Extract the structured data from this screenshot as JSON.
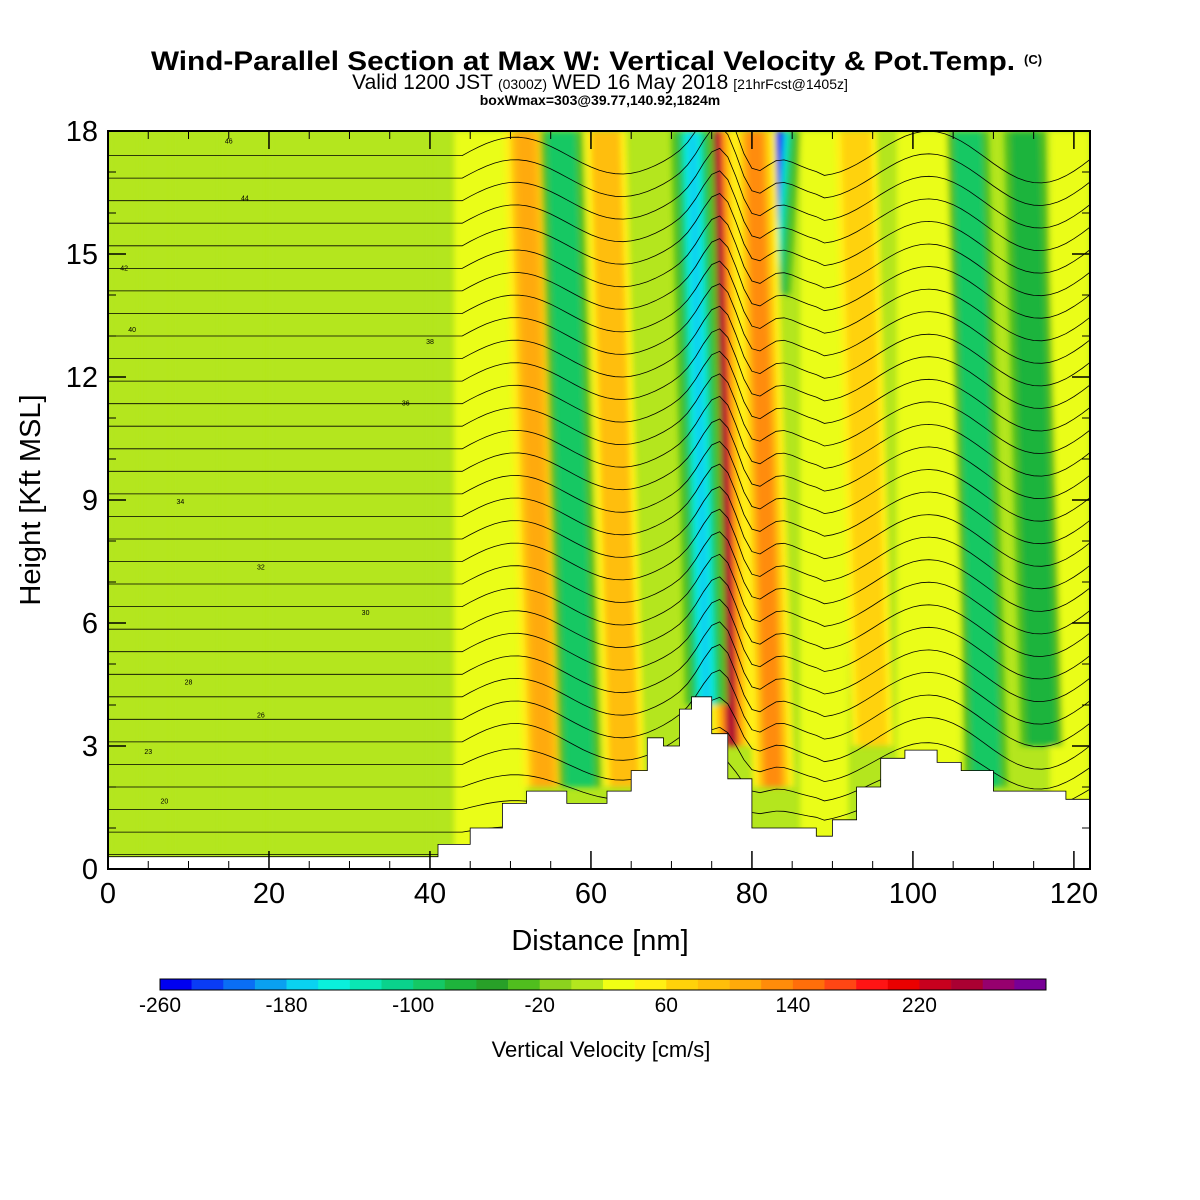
{
  "title": {
    "main": "Wind-Parallel Section at Max W: Vertical Velocity & Pot.Temp.",
    "copyright": "(C)",
    "line2_a": "Valid 1200 JST",
    "line2_b": "(0300Z)",
    "line2_c": "WED 16 May 2018",
    "line2_d": "[21hrFcst@1405z]",
    "line3": "boxWmax=303@39.77,140.92,1824m"
  },
  "chart_data": {
    "type": "heatmap",
    "xlabel": "Distance [nm]",
    "ylabel": "Height [Kft MSL]",
    "xlim": [
      0,
      122
    ],
    "ylim": [
      0,
      18
    ],
    "x_ticks": [
      "0",
      "20",
      "40",
      "60",
      "80",
      "100",
      "120"
    ],
    "y_ticks": [
      "0",
      "3",
      "6",
      "9",
      "12",
      "15",
      "18"
    ],
    "colorbar": {
      "title": "Vertical Velocity [cm/s]",
      "range": [
        -260,
        300
      ],
      "step": 20,
      "tick_labels": [
        "-260",
        "-180",
        "-100",
        "-20",
        "60",
        "140",
        "220"
      ],
      "colors": [
        "#0000f0",
        "#0a3cf5",
        "#0a6ef5",
        "#0aa0f0",
        "#0ad2f0",
        "#0af0dc",
        "#0ae6b4",
        "#0ad28c",
        "#14c864",
        "#1eb43c",
        "#28a028",
        "#50be1e",
        "#8cd21e",
        "#b4e61e",
        "#f0ff14",
        "#fff014",
        "#ffd20a",
        "#ffbe0a",
        "#ffaa0a",
        "#ff8c0a",
        "#ff6e0a",
        "#ff4614",
        "#ff1414",
        "#ea0000",
        "#c8001e",
        "#aa0032",
        "#96006e",
        "#780096"
      ]
    },
    "vertical_velocity_features": [
      {
        "x_nm": 77.5,
        "w_cm_s": 240,
        "from_kft": 3,
        "to_kft": 18,
        "kind": "updraft"
      },
      {
        "x_nm": 74.5,
        "w_cm_s": -180,
        "from_kft": 4,
        "to_kft": 18,
        "kind": "downdraft"
      },
      {
        "x_nm": 84,
        "w_cm_s": -240,
        "from_kft": 14,
        "to_kft": 18,
        "kind": "downdraft"
      },
      {
        "x_nm": 82.5,
        "w_cm_s": 120,
        "from_kft": 2,
        "to_kft": 18,
        "kind": "updraft"
      },
      {
        "x_nm": 54,
        "w_cm_s": 100,
        "from_kft": 2,
        "to_kft": 18,
        "kind": "updraft"
      },
      {
        "x_nm": 58.5,
        "w_cm_s": -90,
        "from_kft": 2,
        "to_kft": 18,
        "kind": "downdraft"
      },
      {
        "x_nm": 64,
        "w_cm_s": 80,
        "from_kft": 2,
        "to_kft": 18,
        "kind": "updraft"
      },
      {
        "x_nm": 95,
        "w_cm_s": 70,
        "from_kft": 3,
        "to_kft": 18,
        "kind": "updraft"
      },
      {
        "x_nm": 109,
        "w_cm_s": -100,
        "from_kft": 2,
        "to_kft": 18,
        "kind": "downdraft"
      },
      {
        "x_nm": 116,
        "w_cm_s": -80,
        "from_kft": 3,
        "to_kft": 18,
        "kind": "downdraft"
      }
    ],
    "theta_contour_labels": [
      "46",
      "44",
      "42",
      "40",
      "38",
      "36",
      "34",
      "32",
      "30",
      "28",
      "26",
      "23",
      "20"
    ],
    "terrain": {
      "x_nm": [
        0,
        40,
        41,
        45,
        49,
        52,
        57,
        62,
        65,
        67,
        69,
        71,
        72.5,
        73.5,
        75,
        77,
        80,
        82,
        85,
        88,
        90,
        93,
        96,
        99,
        103,
        106,
        110,
        113,
        116,
        119,
        122
      ],
      "height_kft": [
        0.3,
        0.3,
        0.6,
        1.0,
        1.6,
        1.9,
        1.6,
        1.9,
        2.4,
        3.2,
        3.0,
        3.9,
        4.2,
        4.2,
        3.3,
        2.2,
        1.0,
        1.0,
        1.0,
        0.8,
        1.2,
        2.0,
        2.7,
        2.9,
        2.6,
        2.4,
        1.9,
        1.9,
        1.9,
        1.7,
        1.3
      ]
    }
  }
}
